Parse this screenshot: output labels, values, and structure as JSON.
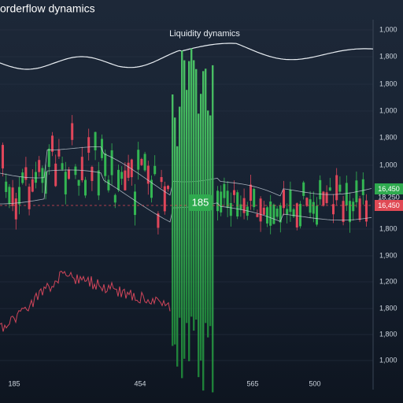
{
  "header": {
    "title": "orderflow dynamics"
  },
  "panel": {
    "title": "Liquidity dynamics"
  },
  "axis": {
    "y_labels": [
      "1,000",
      "1,800",
      "1,800",
      "1,000",
      "1,800",
      "1,000",
      "1,800",
      "1,900",
      "1,200",
      "1,800",
      "1,800",
      "1,000"
    ],
    "x_labels": [
      "185",
      "454",
      "565",
      "500"
    ]
  },
  "price_tags": {
    "upper": "16,450",
    "middle": "18,250",
    "lower": "16,450"
  },
  "center_label": "185"
}
